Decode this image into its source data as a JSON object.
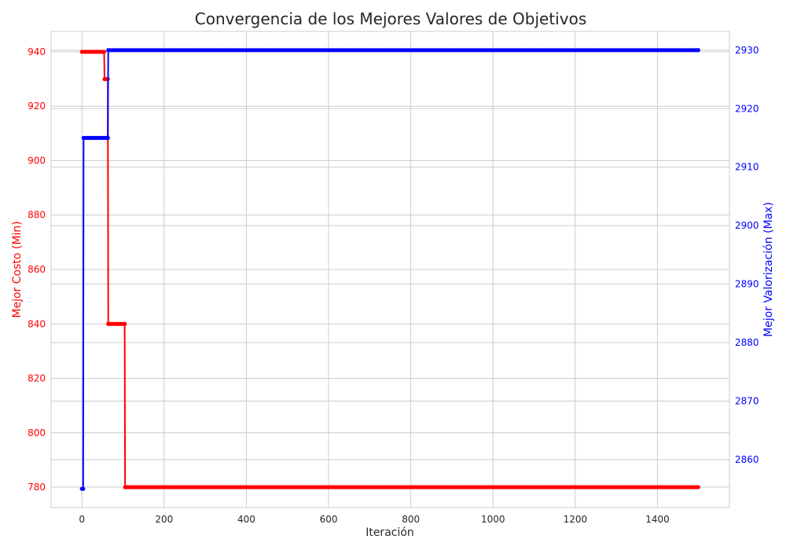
{
  "chart_data": {
    "type": "line",
    "title": "Convergencia de los Mejores Valores de Objetivos",
    "xlabel": "Iteración",
    "ylabel_left": "Mejor Costo (Min)",
    "ylabel_right": "Mejor Valorización (Max)",
    "xlim": [
      -75,
      1575
    ],
    "ylim_left": [
      772.5,
      947.5
    ],
    "ylim_right": [
      2851.8,
      2933.2
    ],
    "x_ticks": [
      0,
      200,
      400,
      600,
      800,
      1000,
      1200,
      1400
    ],
    "y_ticks_left": [
      780,
      800,
      820,
      840,
      860,
      880,
      900,
      920,
      940
    ],
    "y_ticks_right": [
      2860,
      2870,
      2880,
      2890,
      2900,
      2910,
      2920,
      2930
    ],
    "grid": true,
    "marker_step": 5,
    "series": [
      {
        "name": "Mejor Costo (Min)",
        "axis": "left",
        "color": "#ff0000",
        "steps": [
          {
            "x_from": 0,
            "x_to": 54,
            "y": 940
          },
          {
            "x_from": 55,
            "x_to": 63,
            "y": 930
          },
          {
            "x_from": 64,
            "x_to": 104,
            "y": 840
          },
          {
            "x_from": 105,
            "x_to": 1499,
            "y": 780
          }
        ]
      },
      {
        "name": "Mejor Valorización (Max)",
        "axis": "right",
        "color": "#0000ff",
        "steps": [
          {
            "x_from": 0,
            "x_to": 3,
            "y": 2855
          },
          {
            "x_from": 4,
            "x_to": 63,
            "y": 2915
          },
          {
            "x_from": 64,
            "x_to": 1499,
            "y": 2930
          }
        ]
      }
    ]
  }
}
